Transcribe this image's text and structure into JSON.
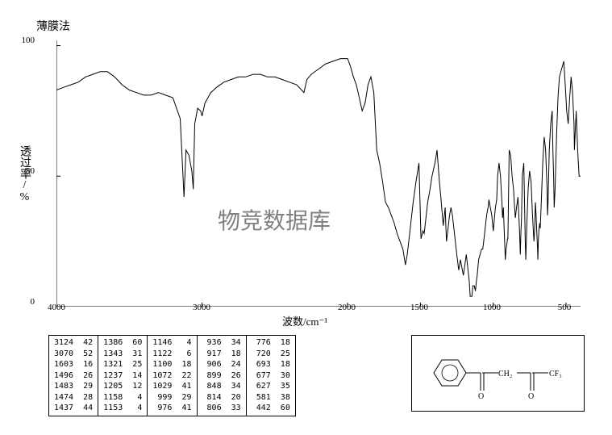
{
  "title": "薄膜法",
  "watermark": "物竞数据库",
  "chart": {
    "type": "line",
    "ylabel": "透过率/%",
    "xlabel": "波数/cm⁻¹",
    "ylim": [
      0,
      102
    ],
    "xlim": [
      4000,
      400
    ],
    "yticks": [
      0,
      50,
      100
    ],
    "xticks": [
      4000,
      3000,
      2000,
      1500,
      1000,
      500
    ],
    "background_color": "#ffffff",
    "axis_color": "#000000",
    "line_color": "#000000",
    "spectrum": [
      [
        4000,
        83
      ],
      [
        3950,
        84
      ],
      [
        3900,
        85
      ],
      [
        3850,
        86
      ],
      [
        3800,
        88
      ],
      [
        3750,
        89
      ],
      [
        3700,
        90
      ],
      [
        3650,
        90
      ],
      [
        3600,
        88
      ],
      [
        3550,
        85
      ],
      [
        3500,
        83
      ],
      [
        3450,
        82
      ],
      [
        3400,
        81
      ],
      [
        3350,
        81
      ],
      [
        3300,
        82
      ],
      [
        3250,
        81
      ],
      [
        3200,
        80
      ],
      [
        3150,
        72
      ],
      [
        3124,
        42
      ],
      [
        3110,
        60
      ],
      [
        3090,
        58
      ],
      [
        3070,
        52
      ],
      [
        3060,
        45
      ],
      [
        3050,
        70
      ],
      [
        3030,
        76
      ],
      [
        3010,
        75
      ],
      [
        3000,
        73
      ],
      [
        2980,
        78
      ],
      [
        2960,
        80
      ],
      [
        2940,
        82
      ],
      [
        2920,
        83
      ],
      [
        2900,
        84
      ],
      [
        2850,
        86
      ],
      [
        2800,
        87
      ],
      [
        2750,
        88
      ],
      [
        2700,
        88
      ],
      [
        2650,
        89
      ],
      [
        2600,
        89
      ],
      [
        2550,
        88
      ],
      [
        2500,
        88
      ],
      [
        2450,
        87
      ],
      [
        2400,
        86
      ],
      [
        2350,
        85
      ],
      [
        2300,
        82
      ],
      [
        2280,
        87
      ],
      [
        2250,
        89
      ],
      [
        2200,
        91
      ],
      [
        2150,
        93
      ],
      [
        2100,
        94
      ],
      [
        2050,
        95
      ],
      [
        2000,
        95
      ],
      [
        1980,
        92
      ],
      [
        1960,
        88
      ],
      [
        1940,
        85
      ],
      [
        1920,
        80
      ],
      [
        1900,
        75
      ],
      [
        1880,
        78
      ],
      [
        1860,
        85
      ],
      [
        1840,
        88
      ],
      [
        1820,
        82
      ],
      [
        1800,
        60
      ],
      [
        1780,
        55
      ],
      [
        1760,
        48
      ],
      [
        1740,
        40
      ],
      [
        1720,
        38
      ],
      [
        1700,
        35
      ],
      [
        1680,
        32
      ],
      [
        1660,
        28
      ],
      [
        1640,
        25
      ],
      [
        1620,
        22
      ],
      [
        1603,
        16
      ],
      [
        1590,
        20
      ],
      [
        1570,
        30
      ],
      [
        1550,
        40
      ],
      [
        1530,
        48
      ],
      [
        1510,
        55
      ],
      [
        1496,
        26
      ],
      [
        1483,
        29
      ],
      [
        1474,
        28
      ],
      [
        1460,
        35
      ],
      [
        1450,
        40
      ],
      [
        1437,
        44
      ],
      [
        1420,
        50
      ],
      [
        1400,
        55
      ],
      [
        1386,
        60
      ],
      [
        1370,
        48
      ],
      [
        1360,
        42
      ],
      [
        1343,
        31
      ],
      [
        1330,
        38
      ],
      [
        1321,
        25
      ],
      [
        1310,
        30
      ],
      [
        1300,
        35
      ],
      [
        1290,
        38
      ],
      [
        1280,
        35
      ],
      [
        1270,
        30
      ],
      [
        1260,
        25
      ],
      [
        1250,
        20
      ],
      [
        1237,
        14
      ],
      [
        1225,
        18
      ],
      [
        1215,
        15
      ],
      [
        1205,
        12
      ],
      [
        1195,
        16
      ],
      [
        1185,
        20
      ],
      [
        1175,
        15
      ],
      [
        1165,
        10
      ],
      [
        1158,
        4
      ],
      [
        1153,
        4
      ],
      [
        1146,
        4
      ],
      [
        1140,
        8
      ],
      [
        1130,
        8
      ],
      [
        1122,
        6
      ],
      [
        1115,
        10
      ],
      [
        1110,
        12
      ],
      [
        1100,
        18
      ],
      [
        1090,
        20
      ],
      [
        1080,
        22
      ],
      [
        1072,
        22
      ],
      [
        1065,
        25
      ],
      [
        1055,
        30
      ],
      [
        1045,
        35
      ],
      [
        1035,
        38
      ],
      [
        1029,
        41
      ],
      [
        1020,
        38
      ],
      [
        1010,
        35
      ],
      [
        1005,
        32
      ],
      [
        999,
        29
      ],
      [
        990,
        35
      ],
      [
        985,
        38
      ],
      [
        976,
        41
      ],
      [
        970,
        50
      ],
      [
        960,
        55
      ],
      [
        950,
        50
      ],
      [
        940,
        40
      ],
      [
        936,
        34
      ],
      [
        930,
        38
      ],
      [
        925,
        30
      ],
      [
        917,
        18
      ],
      [
        912,
        22
      ],
      [
        906,
        24
      ],
      [
        902,
        26
      ],
      [
        899,
        26
      ],
      [
        890,
        60
      ],
      [
        880,
        58
      ],
      [
        870,
        50
      ],
      [
        860,
        45
      ],
      [
        855,
        40
      ],
      [
        848,
        34
      ],
      [
        840,
        38
      ],
      [
        830,
        42
      ],
      [
        820,
        30
      ],
      [
        814,
        20
      ],
      [
        810,
        28
      ],
      [
        806,
        33
      ],
      [
        800,
        50
      ],
      [
        790,
        55
      ],
      [
        785,
        40
      ],
      [
        780,
        25
      ],
      [
        776,
        18
      ],
      [
        770,
        30
      ],
      [
        760,
        45
      ],
      [
        750,
        52
      ],
      [
        740,
        48
      ],
      [
        730,
        35
      ],
      [
        720,
        25
      ],
      [
        715,
        30
      ],
      [
        710,
        40
      ],
      [
        705,
        35
      ],
      [
        700,
        28
      ],
      [
        695,
        22
      ],
      [
        693,
        18
      ],
      [
        690,
        25
      ],
      [
        685,
        30
      ],
      [
        680,
        32
      ],
      [
        677,
        30
      ],
      [
        670,
        40
      ],
      [
        660,
        55
      ],
      [
        650,
        65
      ],
      [
        640,
        60
      ],
      [
        630,
        45
      ],
      [
        627,
        35
      ],
      [
        623,
        40
      ],
      [
        615,
        60
      ],
      [
        605,
        70
      ],
      [
        595,
        75
      ],
      [
        590,
        60
      ],
      [
        585,
        50
      ],
      [
        581,
        38
      ],
      [
        575,
        45
      ],
      [
        565,
        65
      ],
      [
        555,
        80
      ],
      [
        545,
        88
      ],
      [
        535,
        90
      ],
      [
        525,
        92
      ],
      [
        515,
        94
      ],
      [
        505,
        85
      ],
      [
        495,
        75
      ],
      [
        485,
        70
      ],
      [
        475,
        80
      ],
      [
        465,
        88
      ],
      [
        455,
        82
      ],
      [
        445,
        70
      ],
      [
        442,
        60
      ],
      [
        438,
        65
      ],
      [
        430,
        75
      ],
      [
        420,
        60
      ],
      [
        410,
        50
      ],
      [
        400,
        50
      ]
    ]
  },
  "peak_table": {
    "columns": [
      [
        [
          3124,
          42
        ],
        [
          3070,
          52
        ],
        [
          1603,
          16
        ],
        [
          1496,
          26
        ],
        [
          1483,
          29
        ],
        [
          1474,
          28
        ],
        [
          1437,
          44
        ]
      ],
      [
        [
          1386,
          60
        ],
        [
          1343,
          31
        ],
        [
          1321,
          25
        ],
        [
          1237,
          14
        ],
        [
          1205,
          12
        ],
        [
          1158,
          4
        ],
        [
          1153,
          4
        ]
      ],
      [
        [
          1146,
          4
        ],
        [
          1122,
          6
        ],
        [
          1100,
          18
        ],
        [
          1072,
          22
        ],
        [
          1029,
          41
        ],
        [
          999,
          29
        ],
        [
          976,
          41
        ]
      ],
      [
        [
          936,
          34
        ],
        [
          917,
          18
        ],
        [
          906,
          24
        ],
        [
          899,
          26
        ],
        [
          848,
          34
        ],
        [
          814,
          20
        ],
        [
          806,
          33
        ]
      ],
      [
        [
          776,
          18
        ],
        [
          720,
          25
        ],
        [
          693,
          18
        ],
        [
          677,
          30
        ],
        [
          627,
          35
        ],
        [
          581,
          38
        ],
        [
          442,
          60
        ]
      ]
    ]
  },
  "structure": {
    "label_cf3": "CF₃",
    "label_ch2": "CH₂",
    "label_o1": "O",
    "label_o2": "O"
  }
}
